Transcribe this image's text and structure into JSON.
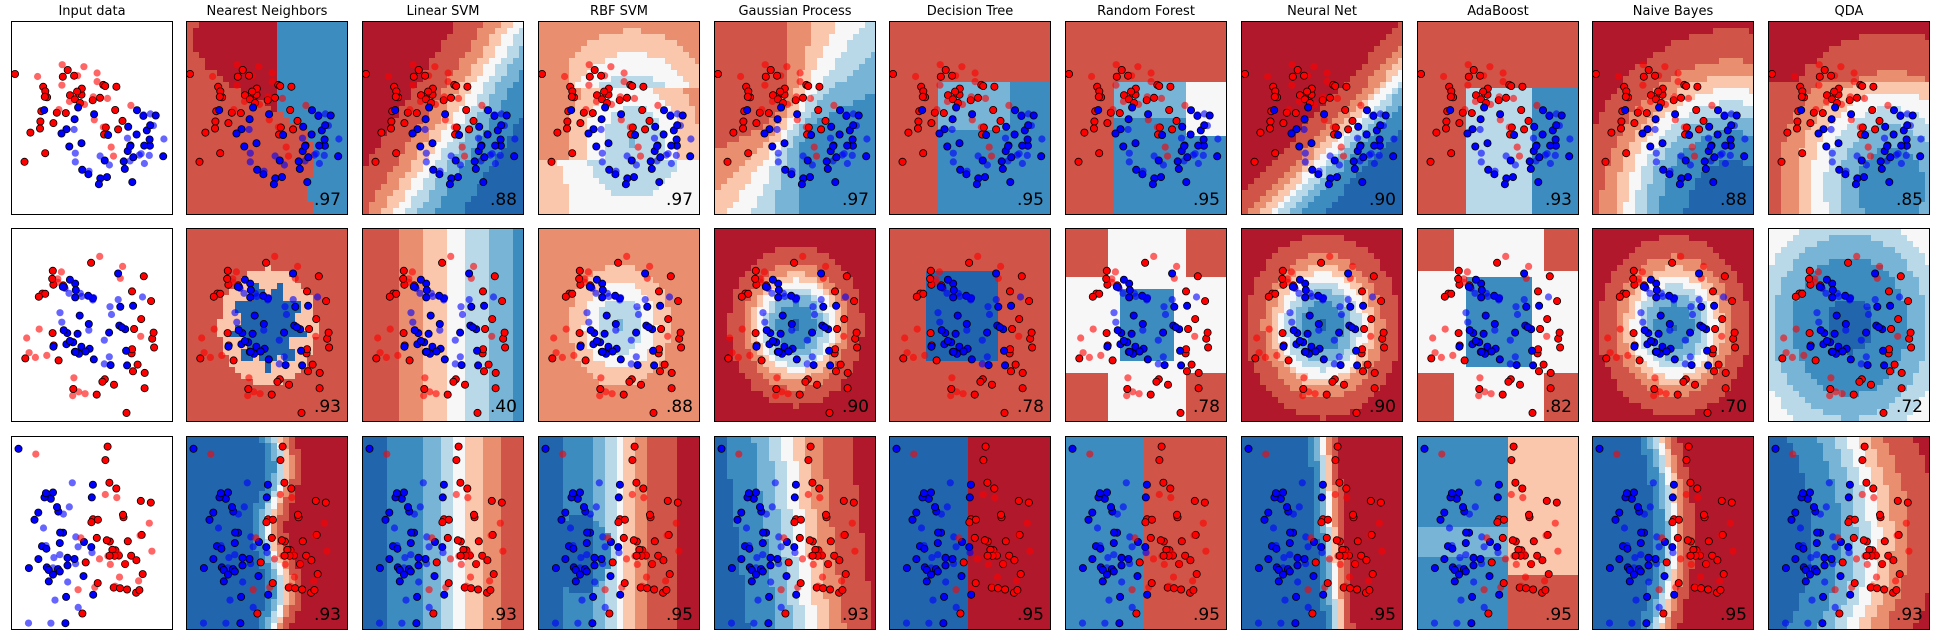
{
  "chart_data": {
    "type": "scatter",
    "title": "",
    "column_titles": [
      "Input data",
      "Nearest Neighbors",
      "Linear SVM",
      "RBF SVM",
      "Gaussian Process",
      "Decision Tree",
      "Random Forest",
      "Neural Net",
      "AdaBoost",
      "Naive Bayes",
      "QDA"
    ],
    "datasets": [
      "moons",
      "circles",
      "linear"
    ],
    "scores": [
      [
        ".97",
        ".88",
        ".97",
        ".97",
        ".95",
        ".95",
        ".90",
        ".93",
        ".88",
        ".85"
      ],
      [
        ".93",
        ".40",
        ".88",
        ".90",
        ".78",
        ".78",
        ".90",
        ".82",
        ".70",
        ".72"
      ],
      [
        ".93",
        ".93",
        ".95",
        ".93",
        ".95",
        ".95",
        ".95",
        ".95",
        ".95",
        ".93"
      ]
    ],
    "colors": {
      "class_0": "#ff0000",
      "class_1": "#0000ff",
      "map_red_dark": "#b2182b",
      "map_blue_dark": "#2166ac",
      "map_mid": "#f7f7f7"
    },
    "grid": false,
    "axes_ticks": false
  }
}
